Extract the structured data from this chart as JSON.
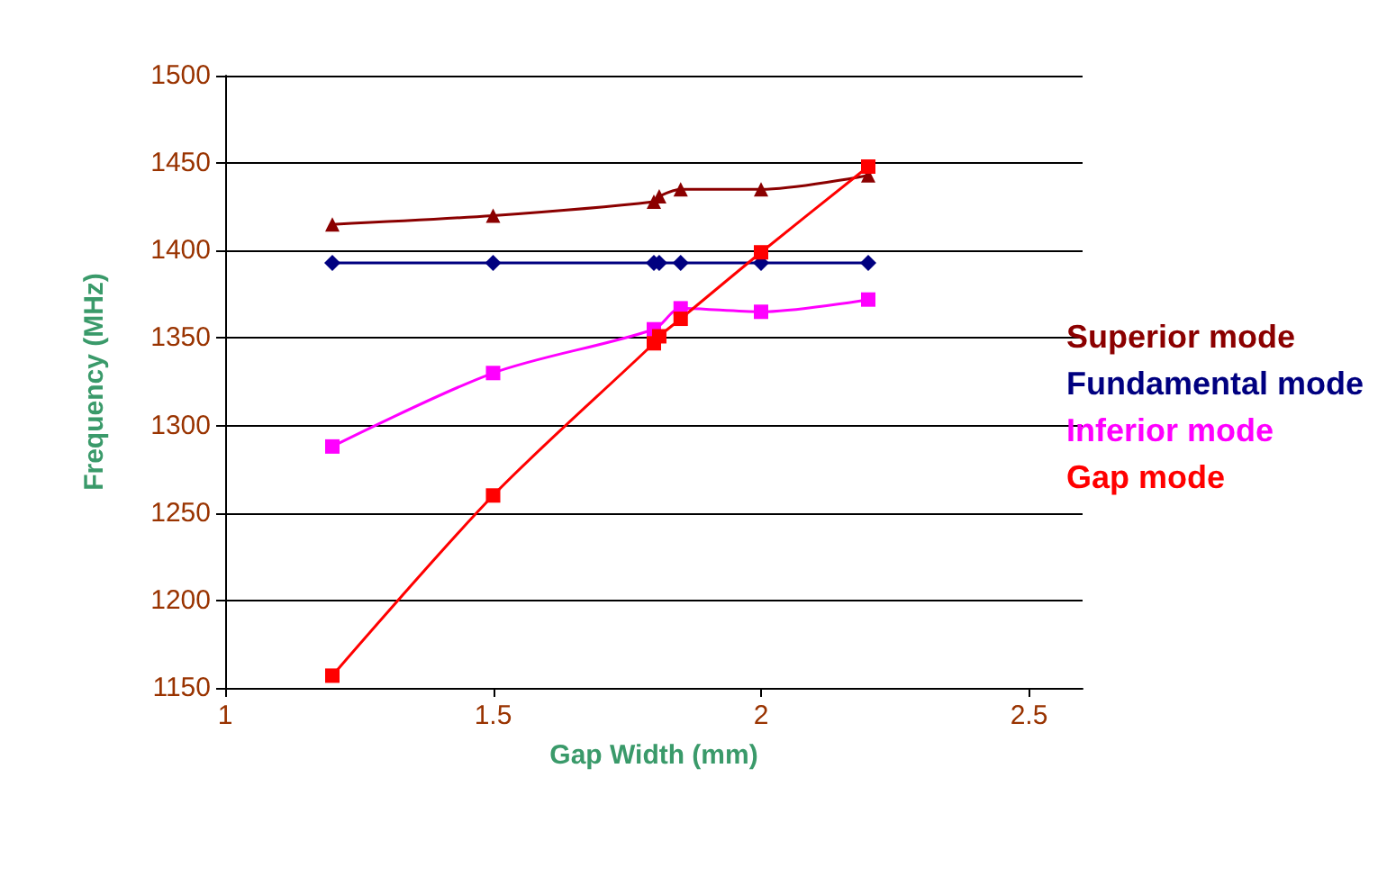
{
  "chart_data": {
    "type": "line",
    "xlabel": "Gap Width (mm)",
    "ylabel": "Frequency (MHz)",
    "xlim": [
      1,
      2.6
    ],
    "xticks": [
      1,
      1.5,
      2,
      2.5
    ],
    "ylim": [
      1150,
      1500
    ],
    "yticks": [
      1150,
      1200,
      1250,
      1300,
      1350,
      1400,
      1450,
      1500
    ],
    "grid": "y",
    "legend": "right",
    "series": [
      {
        "name": "Superior mode",
        "color": "#8b0000",
        "marker": "triangle",
        "x": [
          1.2,
          1.5,
          1.8,
          1.81,
          1.85,
          2,
          2.2
        ],
        "values": [
          1415,
          1420,
          1428,
          1431,
          1435,
          1435,
          1443
        ]
      },
      {
        "name": "Fundamental mode",
        "color": "#000080",
        "marker": "diamond",
        "x": [
          1.2,
          1.5,
          1.8,
          1.81,
          1.85,
          2,
          2.2
        ],
        "values": [
          1393,
          1393,
          1393,
          1393,
          1393,
          1393,
          1393
        ]
      },
      {
        "name": "Inferior mode",
        "color": "#ff00ff",
        "marker": "square",
        "x": [
          1.2,
          1.5,
          1.8,
          1.85,
          2,
          2.2
        ],
        "values": [
          1288,
          1330,
          1355,
          1367,
          1365,
          1372
        ]
      },
      {
        "name": "Gap mode",
        "color": "#ff0000",
        "marker": "square",
        "x": [
          1.2,
          1.5,
          1.8,
          1.81,
          1.85,
          2,
          2.2
        ],
        "values": [
          1157,
          1260,
          1347,
          1351,
          1361,
          1399,
          1448
        ]
      }
    ]
  }
}
